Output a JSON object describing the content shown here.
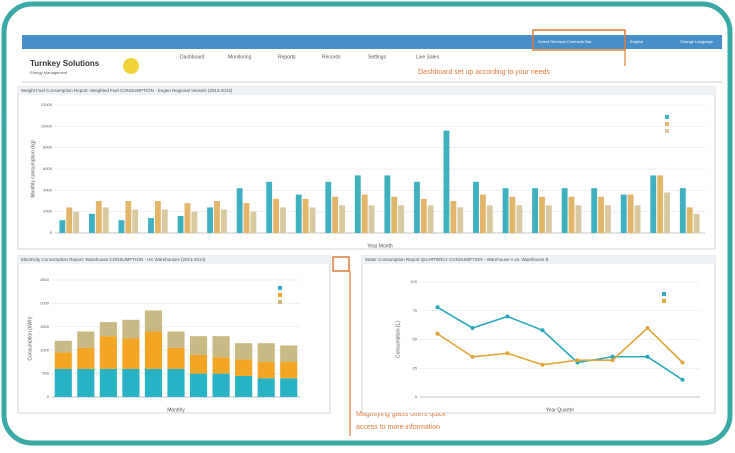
{
  "header": {
    "logo": "Turnkey Solutions",
    "tagline": "Energy Management",
    "bar_link": "Select Renewal Contracts Bar",
    "language": "English",
    "change_language": "Change Language"
  },
  "nav": [
    "Dashboard",
    "Monitoring",
    "Reports",
    "Records",
    "Settings",
    "Live Sales"
  ],
  "callouts": [
    "Dashboard set up according to your needs",
    "Magnifying glass offers quick",
    "access to more information"
  ],
  "chart_data": [
    {
      "type": "bar",
      "title": "Weight Fuel Consumption Report: Weighted Fuel CONSUMPTION - Engen Regional Vessels (2013-2014)",
      "x_label": "Year Month",
      "y_label": "Monthly consumption (kg)",
      "categories": [
        null,
        null,
        null,
        null,
        null,
        null,
        null,
        null,
        null,
        null,
        null,
        null,
        null,
        null,
        null,
        null,
        null,
        null,
        null,
        null,
        null,
        null
      ],
      "series": [
        {
          "color": "#3fb0c0",
          "values": [
            1200,
            1800,
            1200,
            1400,
            1600,
            2400,
            4200,
            4800,
            3600,
            4800,
            5400,
            5400,
            4800,
            9600,
            4800,
            4200,
            4200,
            4200,
            4200,
            3600,
            5400,
            4200
          ]
        },
        {
          "color": "#e3b56a",
          "values": [
            2400,
            3000,
            3000,
            3000,
            2800,
            3000,
            2800,
            3200,
            3200,
            3400,
            3600,
            3400,
            3200,
            3000,
            3600,
            3400,
            3400,
            3400,
            3400,
            3600,
            5400,
            2400
          ]
        },
        {
          "color": "#d9c9a0",
          "values": [
            2000,
            2400,
            2200,
            2200,
            2000,
            2200,
            2000,
            2400,
            2400,
            2600,
            2600,
            2600,
            2600,
            2400,
            2600,
            2600,
            2600,
            2600,
            2600,
            2600,
            3800,
            1800
          ]
        }
      ],
      "ylim": [
        0,
        12000
      ],
      "yticks": [
        0,
        2000,
        4000,
        6000,
        8000,
        10000,
        12000
      ],
      "grid": true
    },
    {
      "type": "stacked_bar",
      "title": "Electricity Consumption Report: Warehouse CONSUMPTION - UK Warehouses (2013-2014)",
      "x_label": "Monthly",
      "y_label": "Consumption (kWh)",
      "categories": [
        null,
        null,
        null,
        null,
        null,
        null,
        null,
        null,
        null,
        null,
        null
      ],
      "series": [
        {
          "color": "#27b3c4",
          "values": [
            600,
            600,
            600,
            600,
            600,
            600,
            500,
            500,
            450,
            400,
            400
          ]
        },
        {
          "color": "#f2a623",
          "values": [
            350,
            450,
            700,
            650,
            800,
            450,
            400,
            350,
            350,
            350,
            350
          ]
        },
        {
          "color": "#c9b985",
          "values": [
            250,
            350,
            300,
            400,
            450,
            350,
            400,
            450,
            350,
            400,
            350
          ]
        }
      ],
      "ylim": [
        0,
        2500
      ],
      "yticks": [
        0,
        500,
        1000,
        1500,
        2000,
        2500
      ],
      "grid": true
    },
    {
      "type": "line",
      "title": "Water Consumption Report QUARTERLY CONSUMPTION - Warehouse A vs. Warehouse B",
      "x_label": "Year Quarter",
      "y_label": "Consumption (L)",
      "categories": [
        null,
        null,
        null,
        null,
        null,
        null,
        null,
        null
      ],
      "series": [
        {
          "color": "#27a9bb",
          "values": [
            78,
            60,
            70,
            58,
            30,
            35,
            35,
            15
          ]
        },
        {
          "color": "#e0a63a",
          "values": [
            55,
            35,
            38,
            28,
            32,
            32,
            60,
            30
          ]
        }
      ],
      "ylim": [
        0,
        100
      ],
      "yticks": [
        0,
        25,
        50,
        75,
        100
      ],
      "grid": true
    }
  ]
}
